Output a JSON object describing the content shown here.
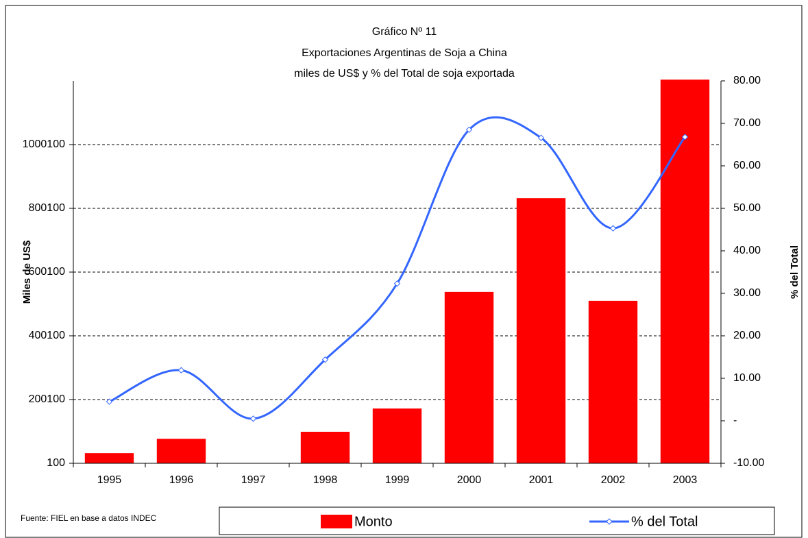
{
  "chart_data": {
    "type": "bar_line",
    "title_lines": [
      "Gráfico Nº 11",
      "Exportaciones Argentinas de Soja a China",
      "miles de US$ y % del Total de soja exportada"
    ],
    "ylabel": "Miles de US$",
    "y2label": "% del Total",
    "source": "Fuente: FIEL en base a datos INDEC",
    "categories": [
      "1995",
      "1996",
      "1997",
      "1998",
      "1999",
      "2000",
      "2001",
      "2002",
      "2003"
    ],
    "series": [
      {
        "name": "Monto",
        "color": "#ff0000",
        "values": [
          32000,
          77000,
          100,
          99000,
          172000,
          538000,
          832000,
          510000,
          1204000
        ]
      },
      {
        "name": "% del Total",
        "color": "#3366ff",
        "axis": "y2",
        "values": [
          4.5,
          11.9,
          0.5,
          14.4,
          32.3,
          68.5,
          66.6,
          45.3,
          66.8
        ]
      }
    ],
    "ylim": [
      100,
      1200100
    ],
    "yticks": [
      100,
      200100,
      400100,
      600100,
      800100,
      1000100
    ],
    "y2lim": [
      -10,
      80
    ],
    "y2ticks": [
      {
        "value": -10,
        "label": "-10.00"
      },
      {
        "value": 0,
        "label": "-"
      },
      {
        "value": 10,
        "label": "10.00"
      },
      {
        "value": 20,
        "label": "20.00"
      },
      {
        "value": 30,
        "label": "30.00"
      },
      {
        "value": 40,
        "label": "40.00"
      },
      {
        "value": 50,
        "label": "50.00"
      },
      {
        "value": 60,
        "label": "60.00"
      },
      {
        "value": 70,
        "label": "70.00"
      },
      {
        "value": 80,
        "label": "80.00"
      }
    ],
    "grid": true
  }
}
